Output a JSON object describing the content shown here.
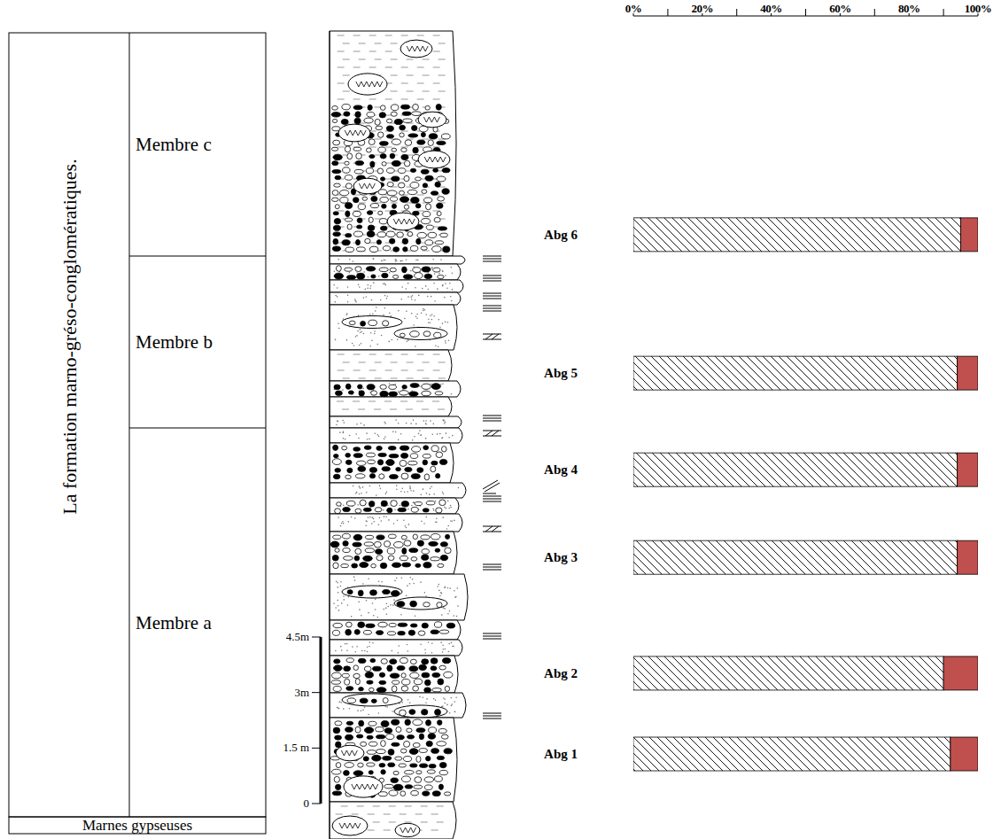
{
  "chart_data": {
    "type": "bar",
    "orientation": "horizontal",
    "stacked": true,
    "categories": [
      "Abg 1",
      "Abg 2",
      "Abg 3",
      "Abg 4",
      "Abg 5",
      "Abg 6"
    ],
    "sample_heights": [
      1.34,
      3.52,
      6.65,
      9.02,
      11.63,
      15.37
    ],
    "series": [
      {
        "color": "#000000",
        "values": [
          92,
          90,
          94,
          94,
          94,
          95
        ]
      },
      {
        "color": "#c0504d",
        "values": [
          8,
          10,
          6,
          6,
          6,
          5
        ]
      }
    ],
    "xlim": [
      0,
      100
    ],
    "xticks": [
      {
        "value": 0,
        "label": "0%"
      },
      {
        "value": 20,
        "label": "20%"
      },
      {
        "value": 40,
        "label": "40%"
      },
      {
        "value": 60,
        "label": "60%"
      },
      {
        "value": 80,
        "label": "80%"
      },
      {
        "value": 100,
        "label": "100%"
      }
    ],
    "grid": false,
    "data_labels": false
  },
  "log_column": {
    "formation": "La formation marno-gréso-conglomératiques.",
    "members": [
      {
        "label": "Membre c"
      },
      {
        "label": "Membre b"
      },
      {
        "label": "Membre a"
      }
    ],
    "base": "Marnes gypseuses",
    "scale": {
      "range": [
        0,
        4.5
      ],
      "ticks": [
        {
          "value": 0,
          "label": "0"
        },
        {
          "value": 1.5,
          "label": "1.5 m"
        },
        {
          "value": 3,
          "label": "3m"
        },
        {
          "value": 4.5,
          "label": "4.5m"
        }
      ]
    }
  }
}
